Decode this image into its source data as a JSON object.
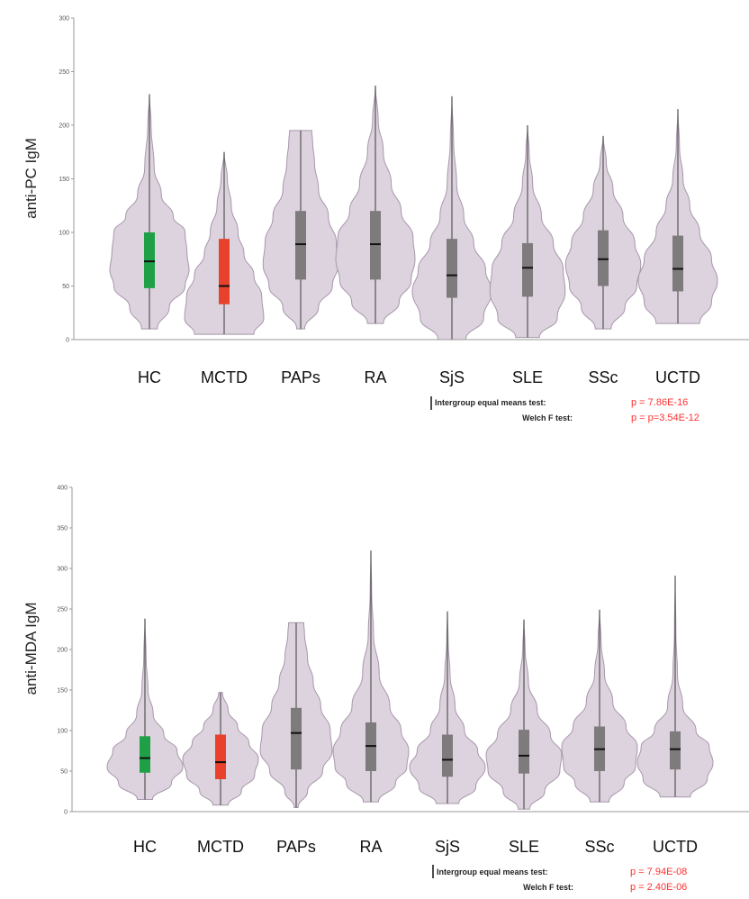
{
  "colors": {
    "violin_fill": "#ddd3de",
    "violin_stroke": "#a797ab",
    "box_default": "#7d7b7c",
    "box_hc": "#1fa047",
    "box_mctd": "#e8412c",
    "median": "#111111",
    "whisker": "#555555",
    "axis": "#9a9a9a",
    "pvalue": "#ff3030"
  },
  "chart_data": [
    {
      "type": "violin",
      "ylabel": "anti-PC IgM",
      "ylim": [
        0,
        300
      ],
      "yticks": [
        "0",
        "50",
        "100",
        "150",
        "200",
        "250",
        "300"
      ],
      "categories": [
        "HC",
        "MCTD",
        "PAPs",
        "RA",
        "SjS",
        "SLE",
        "SSc",
        "UCTD"
      ],
      "box_colors": [
        "#1fa047",
        "#e8412c",
        "#7d7b7c",
        "#7d7b7c",
        "#7d7b7c",
        "#7d7b7c",
        "#7d7b7c",
        "#7d7b7c"
      ],
      "min": [
        10,
        5,
        10,
        15,
        0,
        2,
        10,
        15
      ],
      "q1": [
        48,
        33,
        56,
        56,
        39,
        40,
        50,
        45
      ],
      "median": [
        73,
        50,
        89,
        89,
        60,
        67,
        75,
        66
      ],
      "q3": [
        100,
        94,
        120,
        120,
        94,
        90,
        102,
        97
      ],
      "max": [
        229,
        175,
        195,
        237,
        227,
        200,
        190,
        215
      ],
      "violin_profile": [
        [
          [
            10,
            0.2
          ],
          [
            30,
            0.5
          ],
          [
            50,
            0.9
          ],
          [
            65,
            1.0
          ],
          [
            80,
            0.95
          ],
          [
            100,
            0.9
          ],
          [
            115,
            0.6
          ],
          [
            135,
            0.3
          ],
          [
            160,
            0.12
          ],
          [
            200,
            0.04
          ],
          [
            229,
            0.0
          ]
        ],
        [
          [
            5,
            0.75
          ],
          [
            20,
            1.0
          ],
          [
            40,
            0.95
          ],
          [
            60,
            0.75
          ],
          [
            80,
            0.5
          ],
          [
            100,
            0.35
          ],
          [
            125,
            0.18
          ],
          [
            150,
            0.08
          ],
          [
            175,
            0.0
          ]
        ],
        [
          [
            10,
            0.1
          ],
          [
            30,
            0.45
          ],
          [
            50,
            0.8
          ],
          [
            70,
            0.95
          ],
          [
            90,
            0.9
          ],
          [
            115,
            0.7
          ],
          [
            140,
            0.45
          ],
          [
            165,
            0.35
          ],
          [
            185,
            0.3
          ],
          [
            195,
            0.28
          ]
        ],
        [
          [
            15,
            0.2
          ],
          [
            35,
            0.6
          ],
          [
            55,
            0.9
          ],
          [
            75,
            1.0
          ],
          [
            95,
            0.95
          ],
          [
            120,
            0.65
          ],
          [
            145,
            0.4
          ],
          [
            175,
            0.2
          ],
          [
            205,
            0.07
          ],
          [
            237,
            0.0
          ]
        ],
        [
          [
            0,
            0.35
          ],
          [
            20,
            0.8
          ],
          [
            45,
            1.0
          ],
          [
            65,
            0.85
          ],
          [
            90,
            0.55
          ],
          [
            115,
            0.3
          ],
          [
            145,
            0.12
          ],
          [
            185,
            0.04
          ],
          [
            227,
            0.0
          ]
        ],
        [
          [
            2,
            0.3
          ],
          [
            20,
            0.75
          ],
          [
            45,
            0.95
          ],
          [
            65,
            0.9
          ],
          [
            90,
            0.65
          ],
          [
            115,
            0.35
          ],
          [
            145,
            0.13
          ],
          [
            175,
            0.04
          ],
          [
            200,
            0.0
          ]
        ],
        [
          [
            10,
            0.2
          ],
          [
            30,
            0.55
          ],
          [
            50,
            0.85
          ],
          [
            70,
            0.95
          ],
          [
            90,
            0.8
          ],
          [
            115,
            0.5
          ],
          [
            140,
            0.25
          ],
          [
            165,
            0.08
          ],
          [
            190,
            0.0
          ]
        ],
        [
          [
            15,
            0.55
          ],
          [
            35,
            0.85
          ],
          [
            55,
            1.0
          ],
          [
            75,
            0.85
          ],
          [
            100,
            0.55
          ],
          [
            125,
            0.3
          ],
          [
            150,
            0.13
          ],
          [
            180,
            0.04
          ],
          [
            215,
            0.0
          ]
        ]
      ],
      "stats": {
        "test1_label": "Intergroup equal means test:",
        "test1_value": "p = 7.86E-16",
        "test2_label": "Welch F test:",
        "test2_value": "p = p=3.54E-12"
      }
    },
    {
      "type": "violin",
      "ylabel": "anti-MDA IgM",
      "ylim": [
        0,
        400
      ],
      "yticks": [
        "0",
        "50",
        "100",
        "150",
        "200",
        "250",
        "300",
        "350",
        "400"
      ],
      "categories": [
        "HC",
        "MCTD",
        "PAPs",
        "RA",
        "SjS",
        "SLE",
        "SSc",
        "UCTD"
      ],
      "box_colors": [
        "#1fa047",
        "#e8412c",
        "#7d7b7c",
        "#7d7b7c",
        "#7d7b7c",
        "#7d7b7c",
        "#7d7b7c",
        "#7d7b7c"
      ],
      "min": [
        15,
        8,
        5,
        12,
        10,
        3,
        12,
        18
      ],
      "q1": [
        48,
        40,
        52,
        50,
        43,
        47,
        50,
        52
      ],
      "median": [
        66,
        61,
        97,
        81,
        64,
        69,
        77,
        77
      ],
      "q3": [
        93,
        95,
        128,
        110,
        95,
        101,
        105,
        99
      ],
      "max": [
        238,
        147,
        233,
        322,
        247,
        237,
        249,
        291
      ],
      "violin_profile": [
        [
          [
            15,
            0.2
          ],
          [
            35,
            0.7
          ],
          [
            55,
            1.0
          ],
          [
            75,
            0.85
          ],
          [
            95,
            0.5
          ],
          [
            120,
            0.22
          ],
          [
            150,
            0.08
          ],
          [
            190,
            0.03
          ],
          [
            238,
            0.0
          ]
        ],
        [
          [
            8,
            0.2
          ],
          [
            25,
            0.55
          ],
          [
            45,
            0.9
          ],
          [
            65,
            1.0
          ],
          [
            85,
            0.75
          ],
          [
            105,
            0.45
          ],
          [
            125,
            0.2
          ],
          [
            147,
            0.05
          ]
        ],
        [
          [
            5,
            0.05
          ],
          [
            25,
            0.3
          ],
          [
            50,
            0.7
          ],
          [
            75,
            0.95
          ],
          [
            100,
            0.9
          ],
          [
            130,
            0.65
          ],
          [
            160,
            0.45
          ],
          [
            190,
            0.3
          ],
          [
            220,
            0.22
          ],
          [
            233,
            0.2
          ]
        ],
        [
          [
            12,
            0.2
          ],
          [
            35,
            0.65
          ],
          [
            55,
            0.95
          ],
          [
            75,
            1.0
          ],
          [
            100,
            0.8
          ],
          [
            130,
            0.5
          ],
          [
            170,
            0.22
          ],
          [
            220,
            0.07
          ],
          [
            270,
            0.02
          ],
          [
            322,
            0.0
          ]
        ],
        [
          [
            10,
            0.3
          ],
          [
            30,
            0.75
          ],
          [
            55,
            1.0
          ],
          [
            75,
            0.8
          ],
          [
            100,
            0.45
          ],
          [
            130,
            0.2
          ],
          [
            170,
            0.07
          ],
          [
            210,
            0.02
          ],
          [
            247,
            0.0
          ]
        ],
        [
          [
            3,
            0.15
          ],
          [
            25,
            0.55
          ],
          [
            50,
            0.95
          ],
          [
            70,
            1.0
          ],
          [
            95,
            0.7
          ],
          [
            125,
            0.35
          ],
          [
            160,
            0.12
          ],
          [
            200,
            0.03
          ],
          [
            237,
            0.0
          ]
        ],
        [
          [
            12,
            0.25
          ],
          [
            35,
            0.65
          ],
          [
            55,
            0.95
          ],
          [
            80,
            1.0
          ],
          [
            105,
            0.7
          ],
          [
            135,
            0.35
          ],
          [
            170,
            0.13
          ],
          [
            210,
            0.04
          ],
          [
            249,
            0.0
          ]
        ],
        [
          [
            18,
            0.4
          ],
          [
            40,
            0.85
          ],
          [
            60,
            1.0
          ],
          [
            80,
            0.9
          ],
          [
            100,
            0.55
          ],
          [
            130,
            0.2
          ],
          [
            170,
            0.06
          ],
          [
            220,
            0.02
          ],
          [
            291,
            0.0
          ]
        ]
      ],
      "stats": {
        "test1_label": "Intergroup equal means test:",
        "test1_value": "p = 7.94E-08",
        "test2_label": "Welch F test:",
        "test2_value": "p = 2.40E-06"
      }
    }
  ]
}
